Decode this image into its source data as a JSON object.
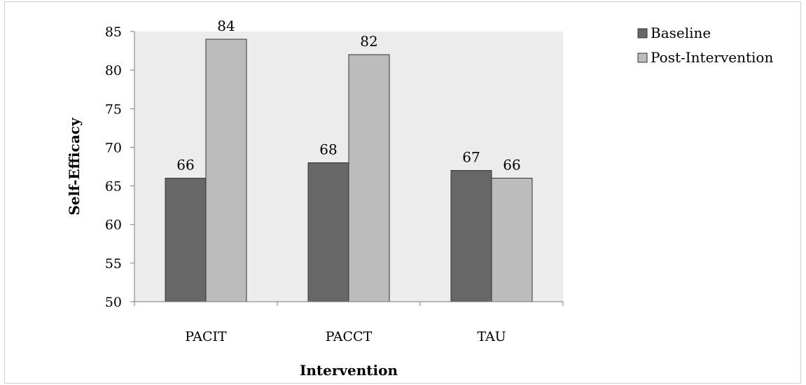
{
  "chart_data": {
    "type": "bar",
    "title": "",
    "xlabel": "Intervention",
    "ylabel": "Self-Efficacy",
    "categories": [
      "PACIT",
      "PACCT",
      "TAU"
    ],
    "series": [
      {
        "name": "Baseline",
        "values": [
          66,
          68,
          67
        ],
        "color": "#676767"
      },
      {
        "name": "Post-Intervention",
        "values": [
          84,
          82,
          66
        ],
        "color": "#bcbcbc"
      }
    ],
    "ylim": [
      50,
      85
    ],
    "yticks": [
      50,
      55,
      60,
      65,
      70,
      75,
      80,
      85
    ],
    "plot_background": "#ececec",
    "grid": false,
    "legend_position": "right"
  }
}
